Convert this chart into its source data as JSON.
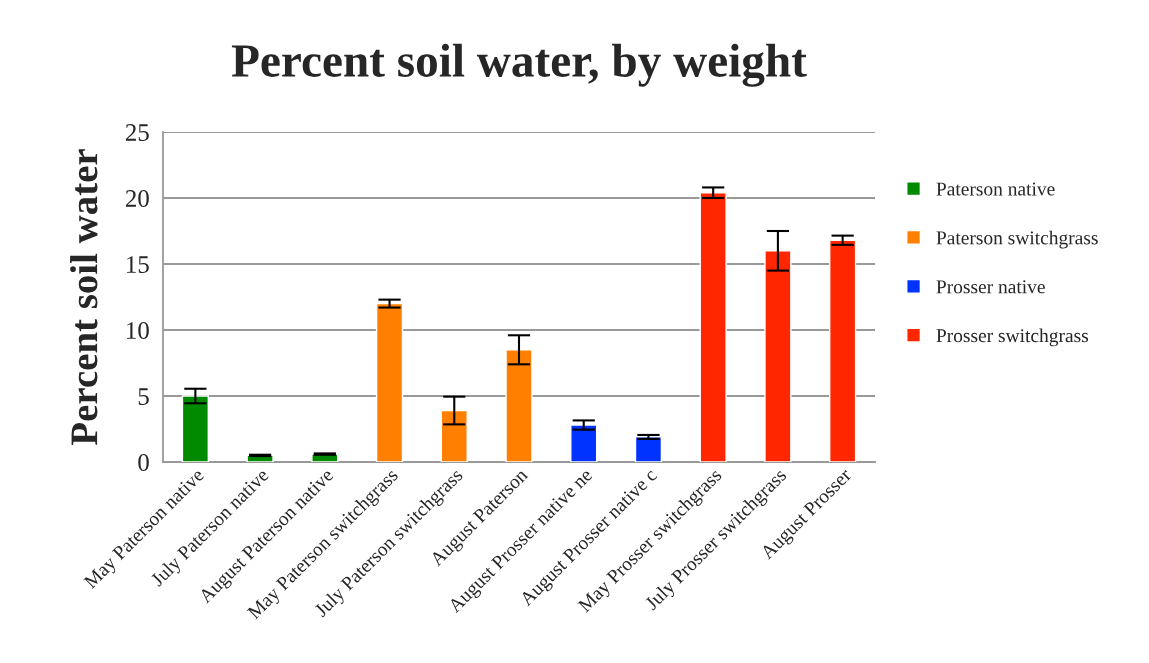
{
  "chart_data": {
    "type": "bar",
    "title": "Percent soil water, by weight",
    "ylabel": "Percent soil water",
    "categories": [
      "May Paterson native",
      "July Paterson native",
      "August Paterson native",
      "May Paterson switchgrass",
      "July Paterson switchgrass",
      "August Paterson",
      "August Prosser native ne",
      "August Prosser native c",
      "May Prosser switchgrass",
      "July Prosser switchgrass",
      "August Prosser"
    ],
    "series": [
      {
        "name": "Paterson native",
        "color": "#008a00",
        "values": [
          5.0,
          0.5,
          0.6,
          null,
          null,
          null,
          null,
          null,
          null,
          null,
          null
        ],
        "errors": [
          0.55,
          0.05,
          0.05,
          null,
          null,
          null,
          null,
          null,
          null,
          null,
          null
        ]
      },
      {
        "name": "Paterson switchgrass",
        "color": "#ff7f00",
        "values": [
          null,
          null,
          null,
          12.0,
          3.9,
          8.5,
          null,
          null,
          null,
          null,
          null
        ],
        "errors": [
          null,
          null,
          null,
          0.3,
          1.05,
          1.1,
          null,
          null,
          null,
          null,
          null
        ]
      },
      {
        "name": "Prosser native",
        "color": "#0033ff",
        "values": [
          null,
          null,
          null,
          null,
          null,
          null,
          2.8,
          1.9,
          null,
          null,
          null
        ],
        "errors": [
          null,
          null,
          null,
          null,
          null,
          null,
          0.35,
          0.15,
          null,
          null,
          null
        ]
      },
      {
        "name": "Prosser switchgrass",
        "color": "#ff2600",
        "values": [
          null,
          null,
          null,
          null,
          null,
          null,
          null,
          null,
          20.4,
          16.0,
          16.8
        ],
        "errors": [
          null,
          null,
          null,
          null,
          null,
          null,
          null,
          null,
          0.4,
          1.5,
          0.35
        ]
      }
    ],
    "ylim": [
      0,
      25
    ],
    "yticks": [
      0,
      5,
      10,
      15,
      20,
      25
    ],
    "grid": "y",
    "legend": "right"
  }
}
